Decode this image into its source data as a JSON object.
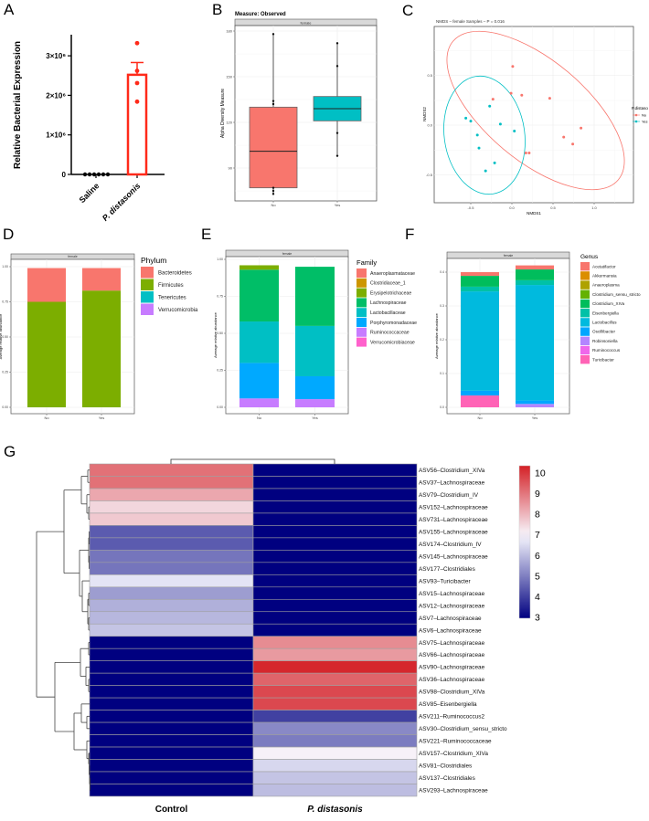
{
  "panel_labels": [
    "A",
    "B",
    "C",
    "D",
    "E",
    "F",
    "G"
  ],
  "chart_data": [
    {
      "panel": "A",
      "type": "bar",
      "ylabel": "Relative Bacterial Expression",
      "categories": [
        "Saline",
        "P. distasonis"
      ],
      "yticks": [
        0,
        1000000,
        2000000,
        3000000
      ],
      "ytick_labels": [
        "0",
        "1×10⁶",
        "2×10⁶",
        "3×10⁶"
      ],
      "ylim": [
        0,
        3500000
      ],
      "mean": [
        0,
        2520000
      ],
      "sem_upper": [
        0,
        2830000
      ],
      "points": [
        [
          0,
          0,
          0,
          0,
          0,
          0
        ],
        [
          3320000,
          2620000,
          2310000,
          1840000
        ]
      ],
      "colors": [
        "#000000",
        "#ff2a1a"
      ]
    },
    {
      "panel": "B",
      "type": "box",
      "title": "Measure: Observed",
      "facet": "female",
      "ylabel": "Alpha Diversity Measure",
      "categories": [
        "No",
        "Yes"
      ],
      "yticks": [
        90,
        120,
        150,
        180
      ],
      "ytick_labels": [
        "90",
        "120",
        "150",
        "180"
      ],
      "boxes": [
        {
          "whisker_low": 73,
          "q1": 77,
          "median": 101,
          "q3": 130,
          "whisker_high": 178
        },
        {
          "whisker_low": 98,
          "q1": 121,
          "median": 129,
          "q3": 137,
          "whisker_high": 172
        }
      ],
      "points": [
        [
          178,
          134,
          132,
          77,
          75,
          73
        ],
        [
          172,
          157,
          113,
          98
        ]
      ],
      "colors": [
        "#f8766d",
        "#00bfc4"
      ]
    },
    {
      "panel": "C",
      "type": "scatter",
      "title": "NMDS – female Samples – P = 0.016",
      "xlabel": "NMDS1",
      "ylabel": "NMDS2",
      "xticks": [
        -0.5,
        0,
        0.5,
        1
      ],
      "xtick_labels": [
        "-0.5",
        "0.0",
        "0.5",
        "1.0"
      ],
      "yticks": [
        -0.5,
        0,
        0.5
      ],
      "ytick_labels": [
        "-0.5",
        "0.0",
        "0.5"
      ],
      "legend_title": "P.distaso",
      "series": [
        {
          "name": "No",
          "color": "#f8766d",
          "points": [
            [
              0.01,
              0.59
            ],
            [
              -0.01,
              0.32
            ],
            [
              0.12,
              0.3
            ],
            [
              0.46,
              0.27
            ],
            [
              -0.23,
              0.26
            ],
            [
              0.84,
              -0.03
            ],
            [
              0.63,
              -0.12
            ],
            [
              0.74,
              -0.19
            ],
            [
              0.17,
              -0.28
            ],
            [
              0.21,
              -0.28
            ]
          ]
        },
        {
          "name": "Yes",
          "color": "#00bfc4",
          "points": [
            [
              -0.27,
              0.19
            ],
            [
              -0.56,
              0.07
            ],
            [
              -0.5,
              0.04
            ],
            [
              -0.14,
              0.01
            ],
            [
              0.03,
              -0.06
            ],
            [
              -0.42,
              -0.1
            ],
            [
              -0.4,
              -0.23
            ],
            [
              -0.21,
              -0.38
            ],
            [
              -0.32,
              -0.46
            ]
          ]
        }
      ]
    },
    {
      "panel": "D",
      "type": "stacked_bar",
      "facet": "female",
      "ylabel": "Average relative abundance",
      "categories": [
        "No",
        "Yes"
      ],
      "yticks": [
        0,
        0.25,
        0.5,
        0.75,
        1
      ],
      "ytick_labels": [
        "0.00",
        "0.25",
        "0.50",
        "0.75",
        "1.00"
      ],
      "legend_title": "Phylum",
      "series": [
        {
          "name": "Bacteroidetes",
          "color": "#f8766d",
          "values": [
            0.24,
            0.16
          ]
        },
        {
          "name": "Firmicutes",
          "color": "#7cae00",
          "values": [
            0.75,
            0.83
          ]
        },
        {
          "name": "Tenericutes",
          "color": "#00bfc4",
          "values": [
            0,
            0
          ]
        },
        {
          "name": "Verrucomicrobia",
          "color": "#c77cff",
          "values": [
            0,
            0
          ]
        }
      ]
    },
    {
      "panel": "E",
      "type": "stacked_bar",
      "facet": "female",
      "ylabel": "Average relative abundance",
      "categories": [
        "No",
        "Yes"
      ],
      "yticks": [
        0,
        0.25,
        0.5,
        0.75,
        1
      ],
      "ytick_labels": [
        "0.00",
        "0.25",
        "0.50",
        "0.75",
        "1.00"
      ],
      "legend_title": "Family",
      "series": [
        {
          "name": "Anaeroplasmataceae",
          "color": "#f8766d",
          "values": [
            0,
            0
          ]
        },
        {
          "name": "Clostridiaceae_1",
          "color": "#cd9600",
          "values": [
            0,
            0
          ]
        },
        {
          "name": "Erysipelotrichaceae",
          "color": "#7cae00",
          "values": [
            0.03,
            0
          ]
        },
        {
          "name": "Lachnospiraceae",
          "color": "#00be67",
          "values": [
            0.35,
            0.4
          ]
        },
        {
          "name": "Lactobacillaceae",
          "color": "#00bfc4",
          "values": [
            0.28,
            0.34
          ]
        },
        {
          "name": "Porphyromonadaceae",
          "color": "#00a9ff",
          "values": [
            0.24,
            0.155
          ]
        },
        {
          "name": "Ruminococcaceae",
          "color": "#c77cff",
          "values": [
            0.06,
            0.055
          ]
        },
        {
          "name": "Verrucomicrobiaceae",
          "color": "#ff61cc",
          "values": [
            0,
            0
          ]
        }
      ]
    },
    {
      "panel": "F",
      "type": "stacked_bar",
      "facet": "female",
      "ylabel": "Average relative abundance",
      "categories": [
        "No",
        "Yes"
      ],
      "yticks": [
        0,
        0.1,
        0.2,
        0.3,
        0.4
      ],
      "ytick_labels": [
        "0.0",
        "0.1",
        "0.2",
        "0.3",
        "0.4"
      ],
      "legend_title": "Genus",
      "series": [
        {
          "name": "Acetatifactor",
          "color": "#f8766d",
          "values": [
            0.011,
            0.012
          ]
        },
        {
          "name": "Akkermansia",
          "color": "#db8e00",
          "values": [
            0,
            0
          ]
        },
        {
          "name": "Anaeroplasma",
          "color": "#aea200",
          "values": [
            0,
            0
          ]
        },
        {
          "name": "Clostridium_sensu_stricto",
          "color": "#64b200",
          "values": [
            0,
            0
          ]
        },
        {
          "name": "Clostridium_XIVa",
          "color": "#00bd5c",
          "values": [
            0.032,
            0.032
          ]
        },
        {
          "name": "Eisenbergiella",
          "color": "#00c1a7",
          "values": [
            0.014,
            0.014
          ]
        },
        {
          "name": "Lactobacillus",
          "color": "#00bade",
          "values": [
            0.294,
            0.342
          ]
        },
        {
          "name": "Oscillibacter",
          "color": "#00a6ff",
          "values": [
            0.014,
            0.01
          ]
        },
        {
          "name": "Robinsoniella",
          "color": "#b385ff",
          "values": [
            0,
            0.01
          ]
        },
        {
          "name": "Ruminococcus",
          "color": "#ef67eb",
          "values": [
            0,
            0
          ]
        },
        {
          "name": "Turicibacter",
          "color": "#ff63b6",
          "values": [
            0.035,
            0
          ]
        }
      ]
    },
    {
      "panel": "G",
      "type": "heatmap",
      "columns": [
        "Control",
        "P. distasonis"
      ],
      "rows": [
        "ASV56–Clostridium_XIVa",
        "ASV37–Lachnospiraceae",
        "ASV79–Clostridium_IV",
        "ASV152–Lachnospiraceae",
        "ASV731–Lachnospiraceae",
        "ASV155–Lachnospiraceae",
        "ASV174–Clostridium_IV",
        "ASV145–Lachnospiraceae",
        "ASV177–Clostridiales",
        "ASV93–Turicibacter",
        "ASV15–Lachnospiraceae",
        "ASV12–Lachnospiraceae",
        "ASV7–Lachnospiraceae",
        "ASV6–Lachnospiraceae",
        "ASV75–Lachnospiraceae",
        "ASV66–Lachnospiraceae",
        "ASV90–Lachnospiraceae",
        "ASV36–Lachnospiraceae",
        "ASV98–Clostridium_XIVa",
        "ASV85–Eisenbergiella",
        "ASV211–Ruminococcus2",
        "ASV30–Clostridium_sensu_stricto",
        "ASV221–Ruminococcaceae",
        "ASV157–Clostridium_XIVa",
        "ASV81–Clostridiales",
        "ASV137–Clostridiales",
        "ASV293–Lachnospiraceae"
      ],
      "values": [
        [
          8.8,
          3
        ],
        [
          8.8,
          3
        ],
        [
          8.0,
          3
        ],
        [
          7.3,
          3
        ],
        [
          7.5,
          3
        ],
        [
          4.4,
          3
        ],
        [
          4.4,
          3
        ],
        [
          4.8,
          3
        ],
        [
          4.8,
          3
        ],
        [
          6.5,
          3
        ],
        [
          5.4,
          3
        ],
        [
          5.7,
          3
        ],
        [
          5.8,
          3
        ],
        [
          6.0,
          3
        ],
        [
          3,
          8.4
        ],
        [
          3,
          8.2
        ],
        [
          3,
          9.9
        ],
        [
          3,
          9.0
        ],
        [
          3,
          9.4
        ],
        [
          3,
          9.4
        ],
        [
          3,
          4.0
        ],
        [
          3,
          5.1
        ],
        [
          3,
          4.9
        ],
        [
          3,
          6.9
        ],
        [
          3,
          6.3
        ],
        [
          3,
          6.0
        ],
        [
          3,
          5.9
        ]
      ],
      "colorbar_ticks": [
        10,
        9,
        8,
        7,
        6,
        5,
        4,
        3
      ],
      "colorbar_labels": [
        "10",
        "9",
        "8",
        "7",
        "6",
        "5",
        "4",
        "3"
      ],
      "colorscale": {
        "low": "#000080",
        "mid": "#f8f8ff",
        "high": "#d42026",
        "min": 3,
        "mid_value": 6.8,
        "max": 10
      }
    }
  ]
}
